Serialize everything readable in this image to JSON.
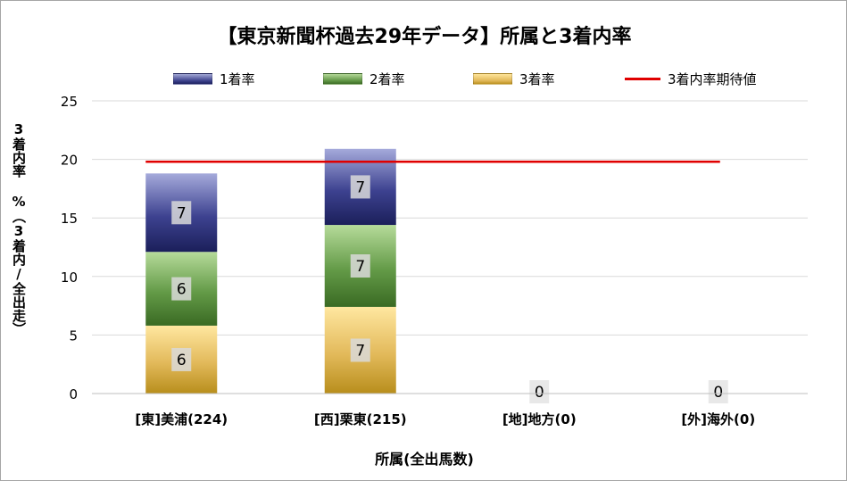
{
  "chart_data": {
    "type": "bar",
    "stacked": true,
    "title": "【東京新聞杯過去29年データ】所属と3着内率",
    "xlabel": "所属(全出馬数)",
    "ylabel": "3着内率 %（3着内/全出走）",
    "ylim": [
      0,
      25
    ],
    "yticks": [
      0,
      5,
      10,
      15,
      20,
      25
    ],
    "grid": true,
    "legend_position": "top",
    "categories": [
      "[東]美浦(224)",
      "[西]栗東(215)",
      "[地]地方(0)",
      "[外]海外(0)"
    ],
    "series": [
      {
        "name": "1着率",
        "values": [
          6.7,
          6.5,
          0,
          0
        ],
        "labels": [
          "7",
          "7",
          "",
          ""
        ],
        "color": "#2e3378"
      },
      {
        "name": "2着率",
        "values": [
          6.3,
          7.0,
          0,
          0
        ],
        "labels": [
          "6",
          "7",
          "",
          ""
        ],
        "color": "#5a8f3e"
      },
      {
        "name": "3着率",
        "values": [
          5.8,
          7.4,
          0,
          0
        ],
        "labels": [
          "6",
          "7",
          "",
          ""
        ],
        "color": "#d9ac45"
      }
    ],
    "zero_labels": [
      "",
      "",
      "0",
      "0"
    ],
    "reference_line": {
      "name": "3着内率期待値",
      "value": 19.8,
      "color": "#e00000"
    }
  }
}
